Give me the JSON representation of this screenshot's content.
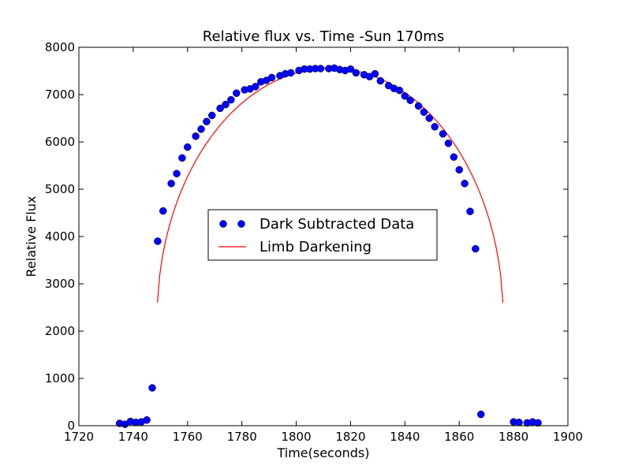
{
  "chart_data": {
    "type": "scatter",
    "title": "Relative flux vs. Time -Sun 170ms",
    "xlabel": "Time(seconds)",
    "ylabel": "Relative Flux",
    "xlim": [
      1720,
      1900
    ],
    "ylim": [
      0,
      8000
    ],
    "x_ticks": [
      1720,
      1740,
      1760,
      1780,
      1800,
      1820,
      1840,
      1860,
      1880,
      1900
    ],
    "y_ticks": [
      0,
      1000,
      2000,
      3000,
      4000,
      5000,
      6000,
      7000,
      8000
    ],
    "grid": false,
    "legend_position": "center",
    "series": [
      {
        "name": "Dark Subtracted Data",
        "type": "scatter",
        "color": "#0000ff",
        "points": [
          [
            1735,
            50
          ],
          [
            1737,
            30
          ],
          [
            1739,
            90
          ],
          [
            1741,
            70
          ],
          [
            1743,
            80
          ],
          [
            1745,
            120
          ],
          [
            1747,
            800
          ],
          [
            1749,
            3900
          ],
          [
            1751,
            4540
          ],
          [
            1754,
            5120
          ],
          [
            1756,
            5330
          ],
          [
            1758,
            5660
          ],
          [
            1760,
            5890
          ],
          [
            1763,
            6120
          ],
          [
            1765,
            6270
          ],
          [
            1767,
            6430
          ],
          [
            1769,
            6560
          ],
          [
            1772,
            6710
          ],
          [
            1774,
            6790
          ],
          [
            1776,
            6890
          ],
          [
            1778,
            7030
          ],
          [
            1781,
            7100
          ],
          [
            1783,
            7120
          ],
          [
            1785,
            7170
          ],
          [
            1787,
            7270
          ],
          [
            1789,
            7300
          ],
          [
            1791,
            7360
          ],
          [
            1794,
            7400
          ],
          [
            1796,
            7440
          ],
          [
            1798,
            7460
          ],
          [
            1801,
            7510
          ],
          [
            1803,
            7540
          ],
          [
            1805,
            7540
          ],
          [
            1807,
            7550
          ],
          [
            1809,
            7550
          ],
          [
            1812,
            7550
          ],
          [
            1814,
            7560
          ],
          [
            1816,
            7530
          ],
          [
            1818,
            7510
          ],
          [
            1820,
            7540
          ],
          [
            1822,
            7460
          ],
          [
            1825,
            7420
          ],
          [
            1827,
            7380
          ],
          [
            1829,
            7440
          ],
          [
            1831,
            7290
          ],
          [
            1834,
            7190
          ],
          [
            1836,
            7130
          ],
          [
            1838,
            7090
          ],
          [
            1840,
            6970
          ],
          [
            1842,
            6880
          ],
          [
            1845,
            6760
          ],
          [
            1847,
            6630
          ],
          [
            1849,
            6500
          ],
          [
            1851,
            6320
          ],
          [
            1854,
            6170
          ],
          [
            1856,
            5970
          ],
          [
            1858,
            5680
          ],
          [
            1860,
            5410
          ],
          [
            1862,
            5120
          ],
          [
            1864,
            4530
          ],
          [
            1866,
            3740
          ],
          [
            1868,
            240
          ],
          [
            1880,
            80
          ],
          [
            1882,
            70
          ],
          [
            1885,
            60
          ],
          [
            1887,
            80
          ],
          [
            1889,
            60
          ]
        ]
      },
      {
        "name": "Limb Darkening",
        "type": "line",
        "color": "#ff0000",
        "center": 1812.5,
        "half_width": 63.7,
        "peak": 7560
      }
    ]
  }
}
